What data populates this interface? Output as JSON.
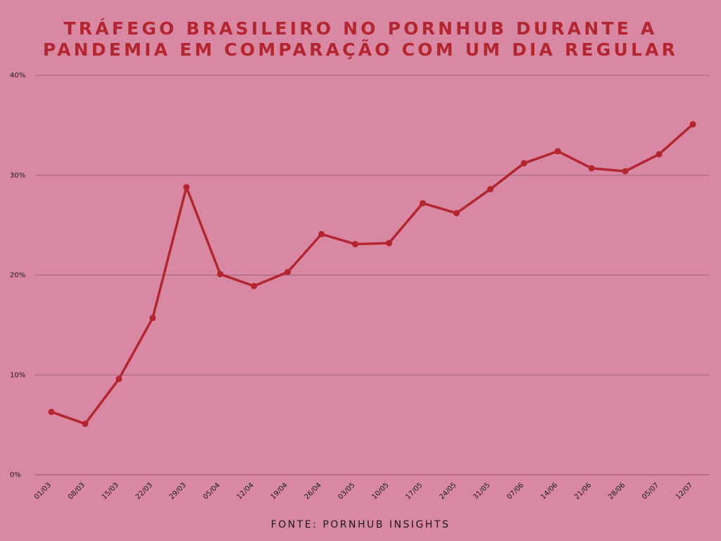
{
  "title_line1": "TRÁFEGO BRASILEIRO NO PORNHUB DURANTE A",
  "title_line2": "PANDEMIA EM COMPARAÇÃO COM UM DIA REGULAR",
  "footer": "FONTE: PORNHUB INSIGHTS",
  "colors": {
    "background": "#d988a3",
    "line": "#b3262f",
    "grid": "#a0677a",
    "text": "#1a1a1a"
  },
  "chart_data": {
    "type": "line",
    "title": "TRÁFEGO BRASILEIRO NO PORNHUB DURANTE A PANDEMIA EM COMPARAÇÃO COM UM DIA REGULAR",
    "xlabel": "",
    "ylabel": "",
    "ylim": [
      0,
      40
    ],
    "yticks": [
      0,
      10,
      20,
      30,
      40
    ],
    "ytick_labels": [
      "0%",
      "10%",
      "20%",
      "30%",
      "40%"
    ],
    "grid": true,
    "categories": [
      "01/03",
      "08/03",
      "15/03",
      "22/03",
      "29/03",
      "05/04",
      "12/04",
      "19/04",
      "26/04",
      "03/05",
      "10/05",
      "17/05",
      "24/05",
      "31/05",
      "07/06",
      "14/06",
      "21/06",
      "28/06",
      "05/07",
      "12/07"
    ],
    "series": [
      {
        "values": [
          6.3,
          5.1,
          9.6,
          15.7,
          28.8,
          20.1,
          18.9,
          20.3,
          24.1,
          23.1,
          23.2,
          27.2,
          26.2,
          28.6,
          31.2,
          32.4,
          30.7,
          30.4,
          32.1,
          35.1
        ]
      }
    ]
  }
}
